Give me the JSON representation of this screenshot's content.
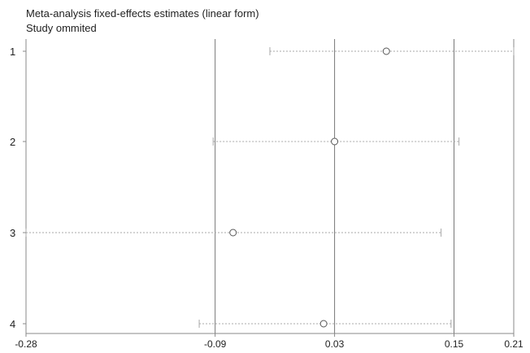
{
  "chart_data": {
    "type": "scatter",
    "title": "Meta-analysis fixed-effects estimates (linear form)",
    "subtitle": "Study ommited",
    "orientation": "horizontal",
    "x_ticks": [
      -0.28,
      -0.09,
      0.03,
      0.15,
      0.21
    ],
    "x_tick_labels": [
      "-0.28",
      "-0.09",
      "0.03",
      "0.15",
      "0.21"
    ],
    "xlim": [
      -0.28,
      0.21
    ],
    "reference_lines": [
      -0.09,
      0.03,
      0.15
    ],
    "studies": [
      {
        "label": "1",
        "estimate": 0.082,
        "lower": -0.035,
        "upper": 0.21
      },
      {
        "label": "2",
        "estimate": 0.03,
        "lower": -0.092,
        "upper": 0.155
      },
      {
        "label": "3",
        "estimate": -0.072,
        "lower": -0.28,
        "upper": 0.137
      },
      {
        "label": "4",
        "estimate": 0.019,
        "lower": -0.106,
        "upper": 0.147
      }
    ],
    "colors": {
      "axis": "#888888",
      "reference_line": "#777777",
      "ci_line": "#a8a8a8",
      "marker": "#555555",
      "text": "#222222"
    }
  }
}
